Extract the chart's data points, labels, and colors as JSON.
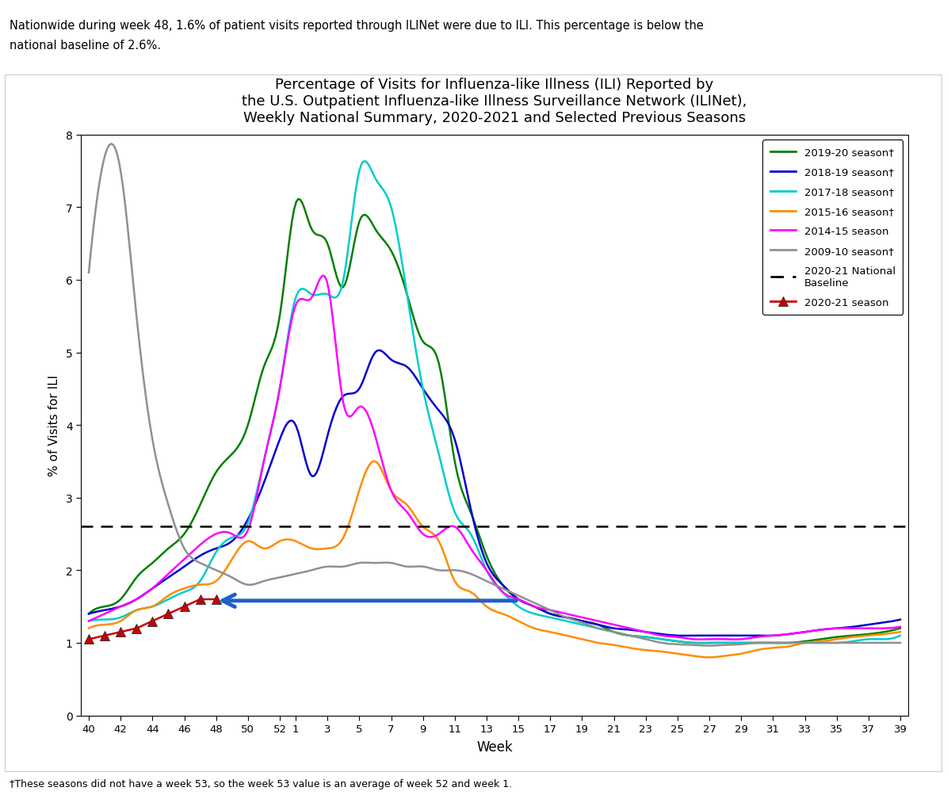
{
  "title": "Percentage of Visits for Influenza-like Illness (ILI) Reported by\nthe U.S. Outpatient Influenza-like Illness Surveillance Network (ILINet),\nWeekly National Summary, 2020-2021 and Selected Previous Seasons",
  "xlabel": "Week",
  "ylabel": "% of Visits for ILI",
  "header_text1": "Nationwide during week 48, 1.6% of patient visits reported through ILINet were due to ILI. This percentage is below the",
  "header_text2": "national baseline of 2.6%.",
  "footer_text": "†These seasons did not have a week 53, so the week 53 value is an average of week 52 and week 1.",
  "baseline": 2.6,
  "ylim": [
    0,
    8
  ],
  "yticks": [
    0,
    1,
    2,
    3,
    4,
    5,
    6,
    7,
    8
  ],
  "weeks": [
    40,
    41,
    42,
    43,
    44,
    45,
    46,
    47,
    48,
    49,
    50,
    51,
    52,
    1,
    2,
    3,
    4,
    5,
    6,
    7,
    8,
    9,
    10,
    11,
    12,
    13,
    14,
    15,
    16,
    17,
    18,
    19,
    20,
    21,
    22,
    23,
    24,
    25,
    26,
    27,
    28,
    29,
    30,
    31,
    32,
    33,
    34,
    35,
    36,
    37,
    38,
    39
  ],
  "weeks_labels": [
    40,
    42,
    44,
    46,
    48,
    50,
    52,
    1,
    3,
    5,
    7,
    9,
    11,
    13,
    15,
    17,
    19,
    21,
    23,
    25,
    27,
    29,
    31,
    33,
    35,
    37,
    39
  ],
  "season_2019_20": [
    1.4,
    1.5,
    1.6,
    1.9,
    2.1,
    2.3,
    2.5,
    2.9,
    3.35,
    3.6,
    4.0,
    4.8,
    5.5,
    7.05,
    6.7,
    6.5,
    5.9,
    6.8,
    6.7,
    6.4,
    5.8,
    5.15,
    4.85,
    3.5,
    2.8,
    2.2,
    1.8,
    1.6,
    1.5,
    1.4,
    1.35,
    1.3,
    1.25,
    1.15,
    1.1,
    1.08,
    1.05,
    1.02,
    1.0,
    1.0,
    1.0,
    1.0,
    1.0,
    1.0,
    1.0,
    1.02,
    1.05,
    1.08,
    1.1,
    1.12,
    1.15,
    1.2
  ],
  "season_2018_19": [
    1.4,
    1.45,
    1.5,
    1.6,
    1.75,
    1.9,
    2.05,
    2.2,
    2.3,
    2.4,
    2.7,
    3.2,
    3.8,
    4.0,
    3.3,
    3.85,
    4.4,
    4.5,
    5.0,
    4.9,
    4.8,
    4.5,
    4.2,
    3.8,
    2.85,
    2.1,
    1.8,
    1.6,
    1.5,
    1.4,
    1.35,
    1.3,
    1.25,
    1.2,
    1.18,
    1.15,
    1.12,
    1.1,
    1.1,
    1.1,
    1.1,
    1.1,
    1.1,
    1.1,
    1.12,
    1.15,
    1.18,
    1.2,
    1.22,
    1.25,
    1.28,
    1.32
  ],
  "season_2017_18": [
    1.3,
    1.32,
    1.35,
    1.45,
    1.5,
    1.6,
    1.7,
    1.85,
    2.25,
    2.45,
    2.65,
    3.5,
    4.5,
    5.75,
    5.8,
    5.8,
    6.0,
    7.5,
    7.4,
    7.0,
    5.8,
    4.5,
    3.6,
    2.8,
    2.5,
    2.0,
    1.7,
    1.5,
    1.4,
    1.35,
    1.3,
    1.25,
    1.2,
    1.15,
    1.1,
    1.08,
    1.05,
    1.02,
    1.0,
    1.0,
    1.0,
    1.0,
    1.0,
    1.0,
    1.0,
    1.0,
    1.0,
    1.0,
    1.02,
    1.05,
    1.05,
    1.1
  ],
  "season_2015_16": [
    1.2,
    1.25,
    1.3,
    1.45,
    1.5,
    1.65,
    1.75,
    1.8,
    1.85,
    2.15,
    2.4,
    2.3,
    2.4,
    2.4,
    2.3,
    2.3,
    2.45,
    3.1,
    3.5,
    3.1,
    2.9,
    2.6,
    2.4,
    1.85,
    1.7,
    1.5,
    1.4,
    1.3,
    1.2,
    1.15,
    1.1,
    1.05,
    1.0,
    0.97,
    0.93,
    0.9,
    0.88,
    0.85,
    0.82,
    0.8,
    0.82,
    0.85,
    0.9,
    0.93,
    0.95,
    1.0,
    1.02,
    1.05,
    1.08,
    1.1,
    1.12,
    1.15
  ],
  "season_2014_15": [
    1.3,
    1.4,
    1.5,
    1.6,
    1.75,
    1.95,
    2.15,
    2.35,
    2.5,
    2.5,
    2.55,
    3.5,
    4.5,
    5.65,
    5.75,
    5.95,
    4.3,
    4.25,
    3.85,
    3.1,
    2.8,
    2.5,
    2.5,
    2.6,
    2.3,
    2.0,
    1.7,
    1.6,
    1.5,
    1.45,
    1.4,
    1.35,
    1.3,
    1.25,
    1.2,
    1.15,
    1.1,
    1.08,
    1.05,
    1.05,
    1.05,
    1.05,
    1.08,
    1.1,
    1.12,
    1.15,
    1.18,
    1.2,
    1.2,
    1.2,
    1.2,
    1.22
  ],
  "season_2009_10": [
    6.1,
    7.7,
    7.5,
    5.5,
    3.8,
    2.9,
    2.3,
    2.1,
    2.0,
    1.9,
    1.8,
    1.85,
    1.9,
    1.95,
    2.0,
    2.05,
    2.05,
    2.1,
    2.1,
    2.1,
    2.05,
    2.05,
    2.0,
    2.0,
    1.95,
    1.85,
    1.75,
    1.65,
    1.55,
    1.45,
    1.35,
    1.28,
    1.2,
    1.15,
    1.1,
    1.05,
    1.0,
    0.98,
    0.97,
    0.96,
    0.97,
    0.98,
    1.0,
    1.0,
    1.0,
    1.0,
    1.0,
    1.0,
    1.0,
    1.0,
    1.0,
    1.0
  ],
  "season_2020_21_x": [
    40,
    41,
    42,
    43,
    44,
    45,
    46,
    47,
    48
  ],
  "season_2020_21_y": [
    1.05,
    1.1,
    1.15,
    1.2,
    1.3,
    1.4,
    1.5,
    1.6,
    1.6
  ],
  "colors": {
    "2019_20": "#008000",
    "2018_19": "#0000CD",
    "2017_18": "#00CCCC",
    "2015_16": "#FF8C00",
    "2014_15": "#FF00FF",
    "2009_10": "#909090",
    "2020_21": "#CC0000",
    "baseline": "#000000",
    "arrow": "#1E5FCC"
  }
}
